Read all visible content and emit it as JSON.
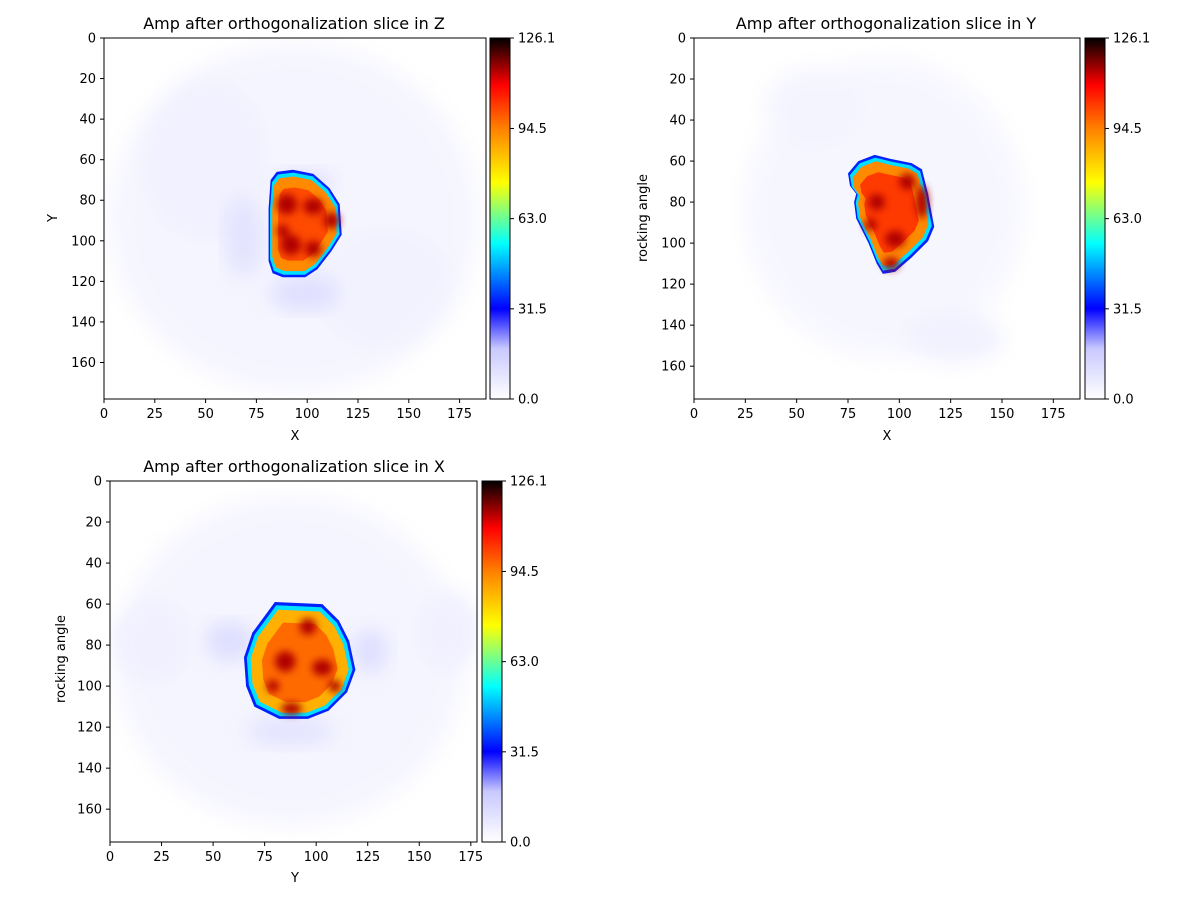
{
  "figure": {
    "colormap": [
      "#ffffff",
      "#0000ff",
      "#00ffff",
      "#ffff00",
      "#ff0000",
      "#000000"
    ]
  },
  "chart_data": [
    {
      "type": "heatmap",
      "title": "Amp after orthogonalization slice in Z",
      "xlabel": "X",
      "ylabel": "Y",
      "xlim": [
        0,
        188
      ],
      "ylim": [
        178,
        0
      ],
      "xticks": [
        0,
        25,
        50,
        75,
        100,
        125,
        150,
        175
      ],
      "yticks": [
        0,
        20,
        40,
        60,
        80,
        100,
        120,
        140,
        160
      ],
      "colorbar": {
        "min": 0.0,
        "max": 126.1,
        "ticks": [
          "0.0",
          "31.5",
          "63.0",
          "94.5",
          "126.1"
        ]
      },
      "object": {
        "outline": [
          [
            85,
            66
          ],
          [
            93,
            65
          ],
          [
            103,
            67
          ],
          [
            111,
            74
          ],
          [
            116,
            82
          ],
          [
            117,
            97
          ],
          [
            112,
            105
          ],
          [
            105,
            114
          ],
          [
            99,
            118
          ],
          [
            88,
            118
          ],
          [
            83,
            116
          ],
          [
            81,
            110
          ],
          [
            81,
            98
          ],
          [
            81,
            84
          ],
          [
            82,
            70
          ]
        ],
        "hotspots": [
          [
            90,
            82,
            5,
            5
          ],
          [
            103,
            83,
            5,
            4
          ],
          [
            112,
            90,
            4,
            4
          ],
          [
            92,
            102,
            5,
            5
          ],
          [
            103,
            104,
            4,
            4
          ],
          [
            88,
            95,
            3,
            3
          ]
        ],
        "fill_value": 95
      }
    },
    {
      "type": "heatmap",
      "title": "Amp after orthogonalization slice in Y",
      "xlabel": "X",
      "ylabel": "rocking angle",
      "xlim": [
        0,
        188
      ],
      "ylim": [
        176,
        0
      ],
      "xticks": [
        0,
        25,
        50,
        75,
        100,
        125,
        150,
        175
      ],
      "yticks": [
        0,
        20,
        40,
        60,
        80,
        100,
        120,
        140,
        160
      ],
      "colorbar": {
        "min": 0.0,
        "max": 126.1,
        "ticks": [
          "0.0",
          "31.5",
          "63.0",
          "94.5",
          "126.1"
        ]
      },
      "object": {
        "outline": [
          [
            80,
            60
          ],
          [
            88,
            57
          ],
          [
            96,
            59
          ],
          [
            106,
            61
          ],
          [
            111,
            64
          ],
          [
            114,
            76
          ],
          [
            117,
            92
          ],
          [
            114,
            99
          ],
          [
            106,
            107
          ],
          [
            98,
            114
          ],
          [
            92,
            115
          ],
          [
            89,
            110
          ],
          [
            85,
            100
          ],
          [
            79,
            88
          ],
          [
            78,
            80
          ],
          [
            79,
            76
          ],
          [
            76,
            72
          ],
          [
            75,
            66
          ]
        ],
        "hotspots": [
          [
            111,
            80,
            3,
            8
          ],
          [
            89,
            80,
            4,
            4
          ],
          [
            104,
            70,
            4,
            4
          ],
          [
            96,
            110,
            4,
            3
          ],
          [
            98,
            98,
            5,
            4
          ],
          [
            86,
            91,
            3,
            3
          ]
        ],
        "fill_value": 95
      }
    },
    {
      "type": "heatmap",
      "title": "Amp after orthogonalization slice in X",
      "xlabel": "Y",
      "ylabel": "rocking angle",
      "xlim": [
        0,
        178
      ],
      "ylim": [
        176,
        0
      ],
      "xticks": [
        0,
        25,
        50,
        75,
        100,
        125,
        150,
        175
      ],
      "yticks": [
        0,
        20,
        40,
        60,
        80,
        100,
        120,
        140,
        160
      ],
      "colorbar": {
        "min": 0.0,
        "max": 126.1,
        "ticks": [
          "0.0",
          "31.5",
          "63.0",
          "94.5",
          "126.1"
        ]
      },
      "object": {
        "outline": [
          [
            80,
            59
          ],
          [
            103,
            60
          ],
          [
            111,
            68
          ],
          [
            116,
            78
          ],
          [
            119,
            92
          ],
          [
            115,
            103
          ],
          [
            106,
            112
          ],
          [
            96,
            116
          ],
          [
            82,
            116
          ],
          [
            70,
            110
          ],
          [
            66,
            100
          ],
          [
            65,
            86
          ],
          [
            69,
            74
          ]
        ],
        "hotspots": [
          [
            85,
            88,
            5,
            5
          ],
          [
            103,
            91,
            5,
            4
          ],
          [
            88,
            111,
            5,
            3
          ],
          [
            96,
            71,
            4,
            4
          ],
          [
            79,
            100,
            3,
            3
          ],
          [
            109,
            100,
            3,
            3
          ]
        ],
        "fill_value": 95
      }
    }
  ]
}
